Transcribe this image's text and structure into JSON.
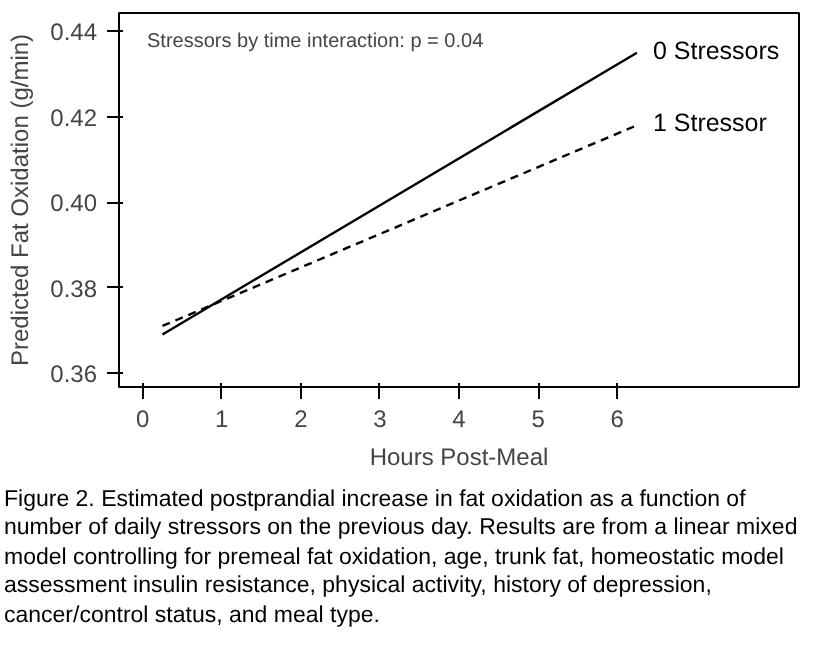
{
  "chart_data": {
    "type": "line",
    "xlabel": "Hours Post-Meal",
    "ylabel": "Predicted Fat Oxidation (g/min)",
    "x": [
      0.25,
      6.25
    ],
    "series": [
      {
        "name": "0 Stressors",
        "color": "#000000",
        "values": [
          0.369,
          0.435
        ],
        "line_style": "solid"
      },
      {
        "name": "1 Stressor",
        "color": "#000000",
        "values": [
          0.371,
          0.418
        ],
        "line_style": "dashed"
      }
    ],
    "xlim": [
      -0.3,
      8.3
    ],
    "ylim": [
      0.3567,
      0.4443
    ],
    "xticks": [
      0,
      1,
      2,
      3,
      4,
      5,
      6
    ],
    "yticks": [
      {
        "value": 0.36,
        "label": "0.36"
      },
      {
        "value": 0.38,
        "label": "0.38"
      },
      {
        "value": 0.4,
        "label": "0.40"
      },
      {
        "value": 0.42,
        "label": "0.42"
      },
      {
        "value": 0.44,
        "label": "0.44"
      }
    ],
    "grid": false,
    "marker": "none",
    "annotations": [
      "Stressors by time interaction: p = 0.04",
      "Figure 2. Estimated postprandial increase in fat oxidation as a function of number of daily stressors on the previous day. Results are from a linear mixed model controlling for premeal fat oxidation, age, trunk fat, homeostatic model assessment insulin resistance, physical activity, history of depression, cancer/control status, and meal type."
    ]
  }
}
